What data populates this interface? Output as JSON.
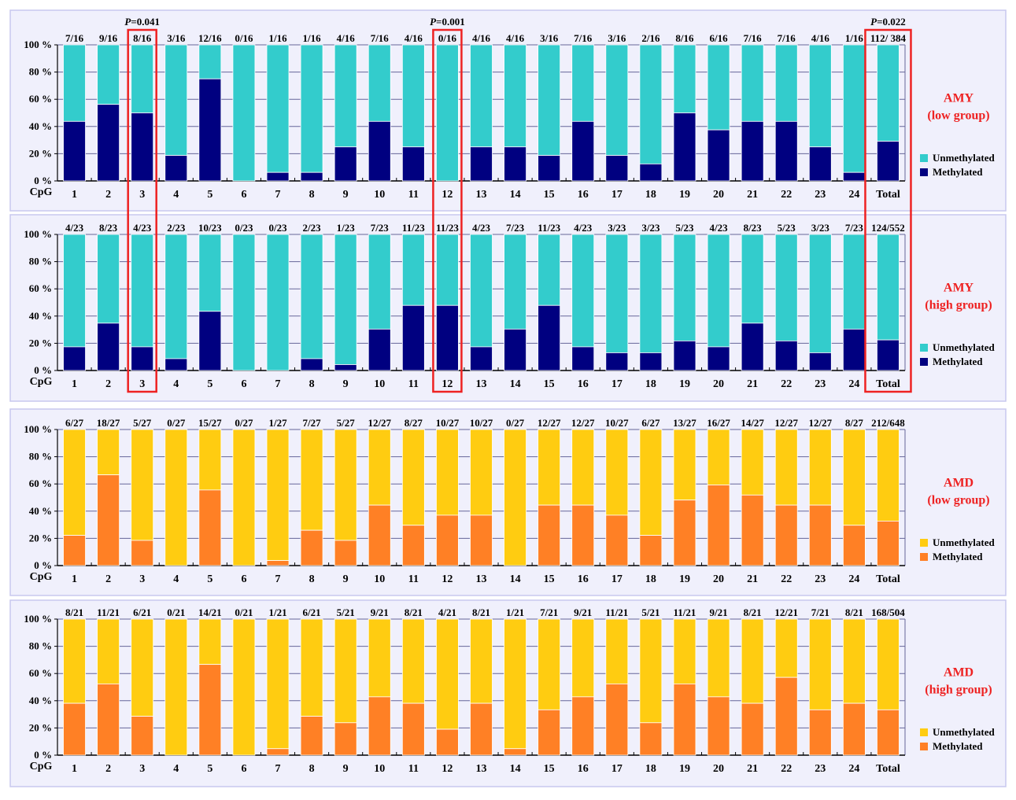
{
  "chart_data": [
    {
      "type": "bar",
      "stacked": true,
      "group": "AMY",
      "subtitle": "(low group)",
      "xlabel": "CpG",
      "ylim": [
        0,
        100
      ],
      "yticks": [
        "0 %",
        "20 %",
        "40 %",
        "60 %",
        "80 %",
        "100 %"
      ],
      "categories": [
        "1",
        "2",
        "3",
        "4",
        "5",
        "6",
        "7",
        "8",
        "9",
        "10",
        "11",
        "12",
        "13",
        "14",
        "15",
        "16",
        "17",
        "18",
        "19",
        "20",
        "21",
        "22",
        "23",
        "24",
        "Total"
      ],
      "fractions": [
        "7/16",
        "9/16",
        "8/16",
        "3/16",
        "12/16",
        "0/16",
        "1/16",
        "1/16",
        "4/16",
        "7/16",
        "4/16",
        "0/16",
        "4/16",
        "4/16",
        "3/16",
        "7/16",
        "3/16",
        "2/16",
        "8/16",
        "6/16",
        "7/16",
        "7/16",
        "4/16",
        "1/16",
        "112/ 384"
      ],
      "series": [
        {
          "name": "Methylated",
          "color": "#000080",
          "values": [
            43.75,
            56.25,
            50,
            18.75,
            75,
            0,
            6.25,
            6.25,
            25,
            43.75,
            25,
            0,
            25,
            25,
            18.75,
            43.75,
            18.75,
            12.5,
            50,
            37.5,
            43.75,
            43.75,
            25,
            6.25,
            29.17
          ]
        },
        {
          "name": "Unmethylated",
          "color": "#33CCCC",
          "values": [
            56.25,
            43.75,
            50,
            81.25,
            25,
            100,
            93.75,
            93.75,
            75,
            56.25,
            75,
            100,
            75,
            75,
            81.25,
            56.25,
            81.25,
            87.5,
            50,
            62.5,
            56.25,
            56.25,
            75,
            93.75,
            70.83
          ]
        }
      ],
      "legend": [
        "Unmethylated",
        "Methylated"
      ],
      "legend_position": "right",
      "highlights": [
        {
          "category": "3",
          "label_prefix": "P",
          "label_value": "=0.041"
        },
        {
          "category": "12",
          "label_prefix": "P",
          "label_value": "=0.001"
        },
        {
          "category": "Total",
          "label_prefix": "P",
          "label_value": "=0.022"
        }
      ]
    },
    {
      "type": "bar",
      "stacked": true,
      "group": "AMY",
      "subtitle": "(high group)",
      "xlabel": "CpG",
      "ylim": [
        0,
        100
      ],
      "yticks": [
        "0 %",
        "20 %",
        "40 %",
        "60 %",
        "80 %",
        "100 %"
      ],
      "categories": [
        "1",
        "2",
        "3",
        "4",
        "5",
        "6",
        "7",
        "8",
        "9",
        "10",
        "11",
        "12",
        "13",
        "14",
        "15",
        "16",
        "17",
        "18",
        "19",
        "20",
        "21",
        "22",
        "23",
        "24",
        "Total"
      ],
      "fractions": [
        "4/23",
        "8/23",
        "4/23",
        "2/23",
        "10/23",
        "0/23",
        "0/23",
        "2/23",
        "1/23",
        "7/23",
        "11/23",
        "11/23",
        "4/23",
        "7/23",
        "11/23",
        "4/23",
        "3/23",
        "3/23",
        "5/23",
        "4/23",
        "8/23",
        "5/23",
        "3/23",
        "7/23",
        "124/552"
      ],
      "series": [
        {
          "name": "Methylated",
          "color": "#000080",
          "values": [
            17.39,
            34.78,
            17.39,
            8.7,
            43.48,
            0,
            0,
            8.7,
            4.35,
            30.43,
            47.83,
            47.83,
            17.39,
            30.43,
            47.83,
            17.39,
            13.04,
            13.04,
            21.74,
            17.39,
            34.78,
            21.74,
            13.04,
            30.43,
            22.46
          ]
        },
        {
          "name": "Unmethylated",
          "color": "#33CCCC",
          "values": [
            82.61,
            65.22,
            82.61,
            91.3,
            56.52,
            100,
            100,
            91.3,
            95.65,
            69.57,
            52.17,
            52.17,
            82.61,
            69.57,
            52.17,
            82.61,
            86.96,
            86.96,
            78.26,
            82.61,
            65.22,
            78.26,
            86.96,
            69.57,
            77.54
          ]
        }
      ],
      "legend": [
        "Unmethylated",
        "Methylated"
      ],
      "legend_position": "right",
      "highlights": [
        {
          "category": "3"
        },
        {
          "category": "12"
        },
        {
          "category": "Total"
        }
      ]
    },
    {
      "type": "bar",
      "stacked": true,
      "group": "AMD",
      "subtitle": "(low group)",
      "xlabel": "CpG",
      "ylim": [
        0,
        100
      ],
      "yticks": [
        "0 %",
        "20 %",
        "40 %",
        "60 %",
        "80 %",
        "100 %"
      ],
      "categories": [
        "1",
        "2",
        "3",
        "4",
        "5",
        "6",
        "7",
        "8",
        "9",
        "10",
        "11",
        "12",
        "13",
        "14",
        "15",
        "16",
        "17",
        "18",
        "19",
        "20",
        "21",
        "22",
        "23",
        "24",
        "Total"
      ],
      "fractions": [
        "6/27",
        "18/27",
        "5/27",
        "0/27",
        "15/27",
        "0/27",
        "1/27",
        "7/27",
        "5/27",
        "12/27",
        "8/27",
        "10/27",
        "10/27",
        "0/27",
        "12/27",
        "12/27",
        "10/27",
        "6/27",
        "13/27",
        "16/27",
        "14/27",
        "12/27",
        "12/27",
        "8/27",
        "212/648"
      ],
      "series": [
        {
          "name": "Methylated",
          "color": "#FF8025",
          "values": [
            22.22,
            66.67,
            18.52,
            0,
            55.56,
            0,
            3.7,
            25.93,
            18.52,
            44.44,
            29.63,
            37.04,
            37.04,
            0,
            44.44,
            44.44,
            37.04,
            22.22,
            48.15,
            59.26,
            51.85,
            44.44,
            44.44,
            29.63,
            32.72
          ]
        },
        {
          "name": "Unmethylated",
          "color": "#FFCC11",
          "values": [
            77.78,
            33.33,
            81.48,
            100,
            44.44,
            100,
            96.3,
            74.07,
            81.48,
            55.56,
            70.37,
            62.96,
            62.96,
            100,
            55.56,
            55.56,
            62.96,
            77.78,
            51.85,
            40.74,
            48.15,
            55.56,
            55.56,
            70.37,
            67.28
          ]
        }
      ],
      "legend": [
        "Unmethylated",
        "Methylated"
      ],
      "legend_position": "right",
      "highlights": []
    },
    {
      "type": "bar",
      "stacked": true,
      "group": "AMD",
      "subtitle": "(high group)",
      "xlabel": "CpG",
      "ylim": [
        0,
        100
      ],
      "yticks": [
        "0 %",
        "20 %",
        "40 %",
        "60 %",
        "80 %",
        "100 %"
      ],
      "categories": [
        "1",
        "2",
        "3",
        "4",
        "5",
        "6",
        "7",
        "8",
        "9",
        "10",
        "11",
        "12",
        "13",
        "14",
        "15",
        "16",
        "17",
        "18",
        "19",
        "20",
        "21",
        "22",
        "23",
        "24",
        "Total"
      ],
      "fractions": [
        "8/21",
        "11/21",
        "6/21",
        "0/21",
        "14/21",
        "0/21",
        "1/21",
        "6/21",
        "5/21",
        "9/21",
        "8/21",
        "4/21",
        "8/21",
        "1/21",
        "7/21",
        "9/21",
        "11/21",
        "5/21",
        "11/21",
        "9/21",
        "8/21",
        "12/21",
        "7/21",
        "8/21",
        "168/504"
      ],
      "series": [
        {
          "name": "Methylated",
          "color": "#FF8025",
          "values": [
            38.1,
            52.38,
            28.57,
            0,
            66.67,
            0,
            4.76,
            28.57,
            23.81,
            42.86,
            38.1,
            19.05,
            38.1,
            4.76,
            33.33,
            42.86,
            52.38,
            23.81,
            52.38,
            42.86,
            38.1,
            57.14,
            33.33,
            38.1,
            33.33
          ]
        },
        {
          "name": "Unmethylated",
          "color": "#FFCC11",
          "values": [
            61.9,
            47.62,
            71.43,
            100,
            33.33,
            100,
            95.24,
            71.43,
            76.19,
            57.14,
            61.9,
            80.95,
            61.9,
            95.24,
            66.67,
            57.14,
            47.62,
            76.19,
            47.62,
            57.14,
            61.9,
            42.86,
            66.67,
            61.9,
            66.67
          ]
        }
      ],
      "legend": [
        "Unmethylated",
        "Methylated"
      ],
      "legend_position": "right",
      "highlights": []
    }
  ],
  "colors": {
    "panel_background": "#F0F0FC",
    "panel_border": "#C8C8EE",
    "gridline": "#666699",
    "highlight_box": "#EE2222",
    "group_label": "#EE2222"
  }
}
